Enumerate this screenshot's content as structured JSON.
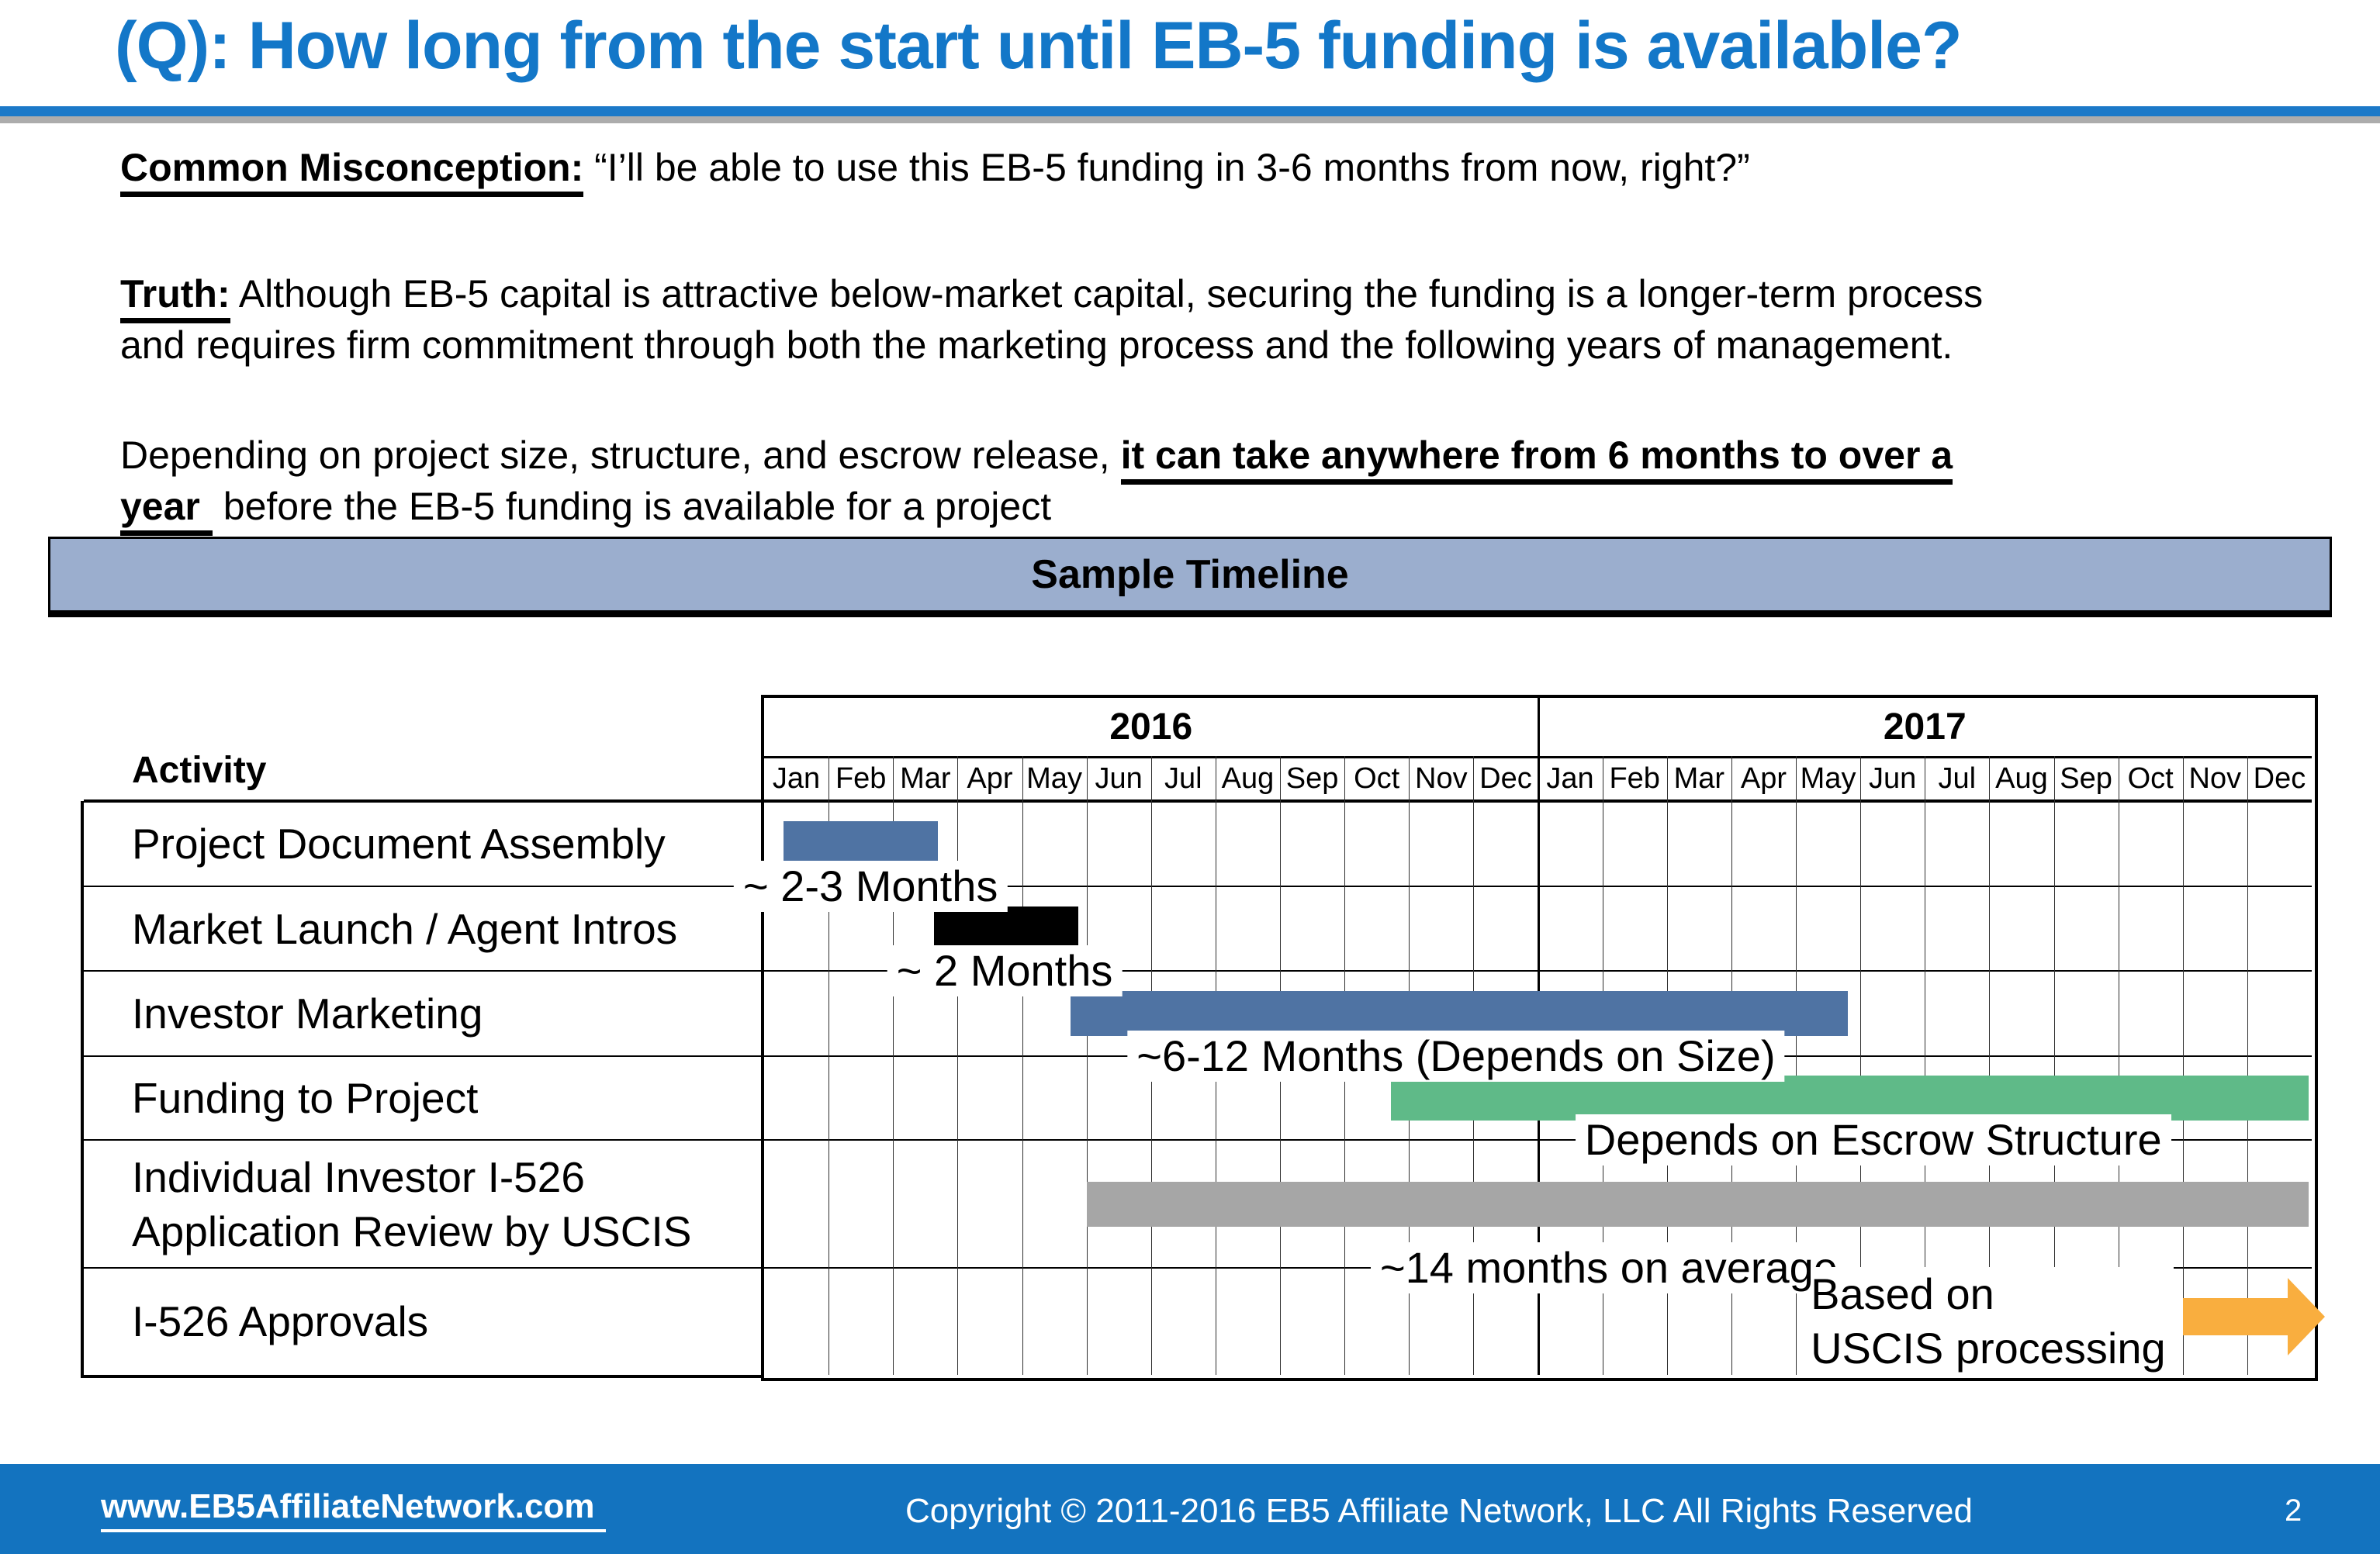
{
  "title": "(Q): How long from the start until EB-5 funding is available?",
  "colors": {
    "title_blue": "#1377C8",
    "rule_blue": "#1B79C8",
    "rule_gray": "#ACACAC",
    "band_fill": "#9BAECE",
    "footer_blue": "#1373BF",
    "bar_blue": "#4F73A3",
    "bar_black": "#000000",
    "bar_green": "#5FBA88",
    "bar_gray": "#A6A6A6",
    "arrow_orange": "#F9AE3F"
  },
  "paragraphs": {
    "p1": [
      {
        "t": "Common Misconception:",
        "bu": true
      },
      {
        "t": " “I’ll be able to use this EB-5 funding in 3-6 months from now, right?”"
      }
    ],
    "p2l1": [
      {
        "t": "Truth:",
        "bu": true
      },
      {
        "t": " Although EB-5 capital is attractive below-market capital, securing the funding is a longer-term process"
      }
    ],
    "p2l2": [
      {
        "t": "and requires firm commitment through both the marketing process and the following years of management."
      }
    ],
    "p3l1": [
      {
        "t": "Depending on project size, structure, and escrow release, "
      },
      {
        "t": "it can take anywhere from 6 months to over a",
        "bu": true
      }
    ],
    "p3l2": [
      {
        "t": "year",
        "bu": true,
        "pad": true
      },
      {
        "t": " before the EB-5 funding is available for a project"
      }
    ]
  },
  "timeline_band_label": "Sample Timeline",
  "activity_header": "Activity",
  "chart_data": {
    "type": "gantt",
    "title": "Sample Timeline",
    "axis_note": "24 monthly columns spanning Jan 2016 through Dec 2017",
    "years": [
      {
        "label": "2016"
      },
      {
        "label": "2017"
      }
    ],
    "months": [
      "Jan",
      "Feb",
      "Mar",
      "Apr",
      "May",
      "Jun",
      "Jul",
      "Aug",
      "Sep",
      "Oct",
      "Nov",
      "Dec"
    ],
    "rows": [
      {
        "activity_lines": [
          "Project Document Assembly"
        ],
        "bar": {
          "start_month": 0.3,
          "end_month": 2.7,
          "color": "#4F73A3"
        },
        "annotation": {
          "text": "~ 2-3 Months",
          "center_month": 1.65
        }
      },
      {
        "activity_lines": [
          "Market Launch / Agent Intros"
        ],
        "bar": {
          "start_month": 2.63,
          "end_month": 4.87,
          "color": "#000000"
        },
        "annotation": {
          "text": "~ 2 Months",
          "center_month": 3.73
        }
      },
      {
        "activity_lines": [
          "Investor Marketing"
        ],
        "bar": {
          "start_month": 4.75,
          "end_month": 16.8,
          "color": "#4F73A3"
        },
        "annotation": {
          "text": "~6-12 Months (Depends on Size)",
          "center_month": 10.73
        }
      },
      {
        "activity_lines": [
          "Funding to Project"
        ],
        "bar": {
          "start_month": 9.72,
          "end_month": 23.95,
          "color": "#5FBA88"
        },
        "annotation": {
          "text": "Depends on Escrow Structure",
          "center_month": 17.2
        }
      },
      {
        "activity_lines": [
          "Individual Investor I-526",
          "Application Review by USCIS"
        ],
        "bar": {
          "start_month": 5.0,
          "end_month": 23.95,
          "color": "#A6A6A6"
        },
        "annotation": {
          "text": "~14 months on average",
          "center_month": 13.1
        }
      },
      {
        "activity_lines": [
          "I-526 Approvals"
        ],
        "arrow": {
          "start_month": 22.0,
          "end_month": 24.2,
          "color": "#F9AE3F"
        },
        "note_lines": [
          "Based on",
          "USCIS processing"
        ],
        "note_start_month": 16.23
      }
    ]
  },
  "footer": {
    "website": "www.EB5AffiliateNetwork.com",
    "copyright": "Copyright © 2011-2016 EB5 Affiliate Network, LLC All Rights Reserved",
    "page": "2"
  }
}
